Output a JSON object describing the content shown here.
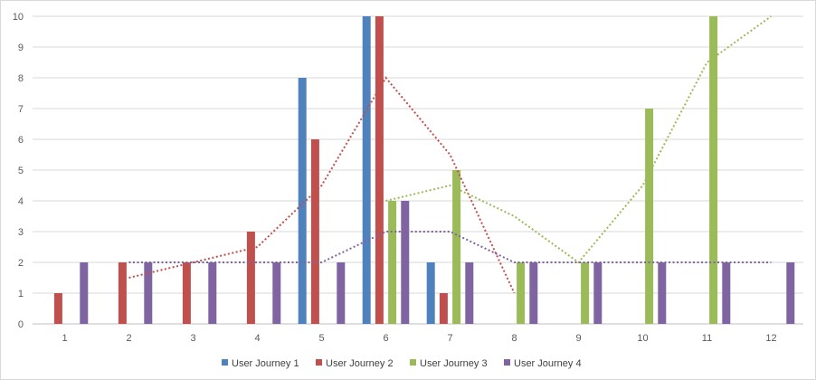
{
  "chart_data": {
    "type": "bar",
    "categories": [
      "1",
      "2",
      "3",
      "4",
      "5",
      "6",
      "7",
      "8",
      "9",
      "10",
      "11",
      "12"
    ],
    "ylim": [
      0,
      10
    ],
    "yticks": [
      "0",
      "1",
      "2",
      "3",
      "4",
      "5",
      "6",
      "7",
      "8",
      "9",
      "10"
    ],
    "grid": true,
    "legend_position": "bottom",
    "series": [
      {
        "name": "User Journey 1",
        "color": "#4f81bd",
        "values": [
          null,
          null,
          null,
          null,
          8,
          10,
          2,
          null,
          null,
          null,
          null,
          null
        ]
      },
      {
        "name": "User Journey 2",
        "color": "#c0504d",
        "values": [
          1,
          2,
          2,
          3,
          6,
          10,
          1,
          null,
          null,
          null,
          null,
          null
        ]
      },
      {
        "name": "User Journey 3",
        "color": "#9bbb59",
        "values": [
          null,
          null,
          null,
          null,
          null,
          4,
          5,
          2,
          2,
          7,
          10,
          null
        ]
      },
      {
        "name": "User Journey 4",
        "color": "#8064a2",
        "values": [
          2,
          2,
          2,
          2,
          2,
          4,
          2,
          2,
          2,
          2,
          2,
          2
        ]
      }
    ],
    "trendlines": [
      {
        "series": "User Journey 2",
        "type": "moving_average",
        "color": "#c0504d",
        "points": [
          [
            2,
            1.5
          ],
          [
            3,
            2
          ],
          [
            4,
            2.5
          ],
          [
            5,
            4.5
          ],
          [
            6,
            8
          ],
          [
            7,
            5.5
          ],
          [
            8,
            1
          ]
        ]
      },
      {
        "series": "User Journey 3",
        "type": "moving_average",
        "color": "#9bbb59",
        "points": [
          [
            6,
            4
          ],
          [
            7,
            4.5
          ],
          [
            8,
            3.5
          ],
          [
            9,
            2
          ],
          [
            10,
            4.5
          ],
          [
            11,
            8.5
          ],
          [
            12,
            10
          ]
        ]
      },
      {
        "series": "User Journey 4",
        "type": "moving_average",
        "color": "#8064a2",
        "points": [
          [
            2,
            2
          ],
          [
            3,
            2
          ],
          [
            4,
            2
          ],
          [
            5,
            2
          ],
          [
            6,
            3
          ],
          [
            7,
            3
          ],
          [
            8,
            2
          ],
          [
            9,
            2
          ],
          [
            10,
            2
          ],
          [
            11,
            2
          ],
          [
            12,
            2
          ]
        ]
      }
    ]
  }
}
